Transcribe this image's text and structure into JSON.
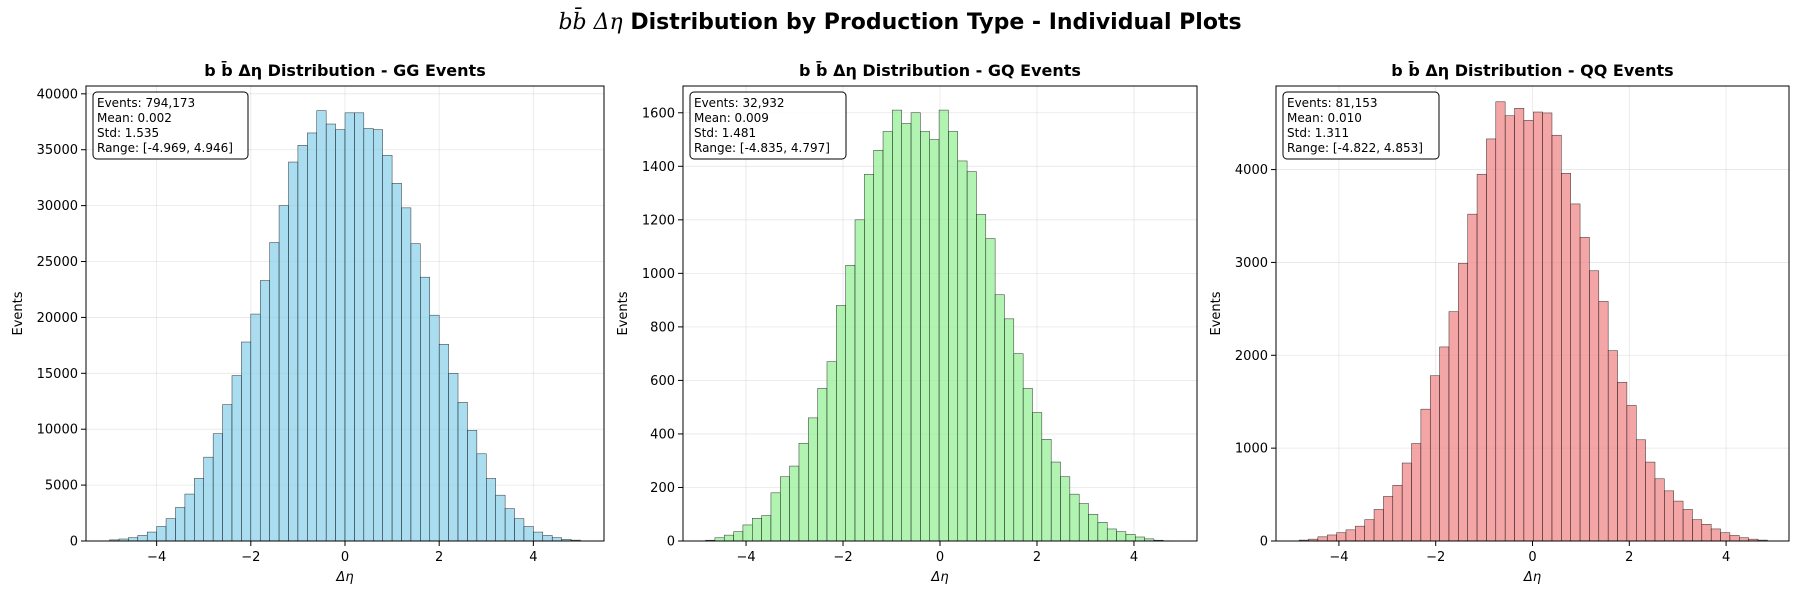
{
  "figure": {
    "title": "b b̄ Δη Distribution by Production Type - Individual Plots"
  },
  "chart_data": [
    {
      "type": "bar",
      "title": "b b̄ Δη Distribution - GG Events",
      "xlabel": "Δη",
      "ylabel": "Events",
      "xlim": [
        -5.5,
        5.5
      ],
      "ylim": [
        0,
        40700
      ],
      "xticks": [
        -4,
        -2,
        0,
        2,
        4
      ],
      "yticks": [
        0,
        5000,
        10000,
        15000,
        20000,
        25000,
        30000,
        35000,
        40000
      ],
      "grid": true,
      "color": "#87CEEB",
      "bin_start": -5.0,
      "bin_width": 0.2,
      "values": [
        100,
        180,
        300,
        500,
        800,
        1300,
        2000,
        3000,
        4200,
        5600,
        7500,
        9600,
        12200,
        14800,
        17800,
        20300,
        23300,
        26700,
        30000,
        33900,
        35400,
        36500,
        38500,
        37300,
        36800,
        38300,
        38300,
        36900,
        36800,
        34500,
        32000,
        29800,
        26600,
        23600,
        20200,
        17600,
        15000,
        12400,
        9900,
        7800,
        5600,
        4100,
        2900,
        2000,
        1300,
        800,
        500,
        300,
        150,
        80
      ],
      "stats": {
        "events": "Events: 794,173",
        "mean": "Mean: 0.002",
        "std": "Std: 1.535",
        "range": "Range: [-4.969, 4.946]"
      }
    },
    {
      "type": "bar",
      "title": "b b̄ Δη Distribution - GQ Events",
      "xlabel": "Δη",
      "ylabel": "Events",
      "xlim": [
        -5.3,
        5.3
      ],
      "ylim": [
        0,
        1700
      ],
      "xticks": [
        -4,
        -2,
        0,
        2,
        4
      ],
      "yticks": [
        0,
        200,
        400,
        600,
        800,
        1000,
        1200,
        1400,
        1600
      ],
      "grid": true,
      "color": "#90EE90",
      "bin_start": -4.835,
      "bin_width": 0.19264,
      "values": [
        3,
        12,
        22,
        35,
        60,
        85,
        95,
        180,
        240,
        280,
        365,
        460,
        570,
        670,
        880,
        1030,
        1200,
        1370,
        1460,
        1530,
        1610,
        1560,
        1600,
        1530,
        1500,
        1610,
        1530,
        1420,
        1380,
        1220,
        1130,
        920,
        830,
        700,
        570,
        480,
        380,
        295,
        240,
        175,
        140,
        100,
        70,
        45,
        35,
        25,
        15,
        8,
        3,
        1
      ],
      "stats": {
        "events": "Events: 32,932",
        "mean": "Mean: 0.009",
        "std": "Std: 1.481",
        "range": "Range: [-4.835, 4.797]"
      }
    },
    {
      "type": "bar",
      "title": "b b̄ Δη Distribution - QQ Events",
      "xlabel": "Δη",
      "ylabel": "Events",
      "xlim": [
        -5.3,
        5.3
      ],
      "ylim": [
        0,
        4900
      ],
      "xticks": [
        -4,
        -2,
        0,
        2,
        4
      ],
      "yticks": [
        0,
        1000,
        2000,
        3000,
        4000
      ],
      "grid": true,
      "color": "#F08080",
      "bin_start": -4.822,
      "bin_width": 0.1935,
      "values": [
        10,
        20,
        45,
        65,
        90,
        120,
        160,
        230,
        340,
        480,
        600,
        840,
        1050,
        1420,
        1780,
        2090,
        2470,
        2990,
        3520,
        3950,
        4330,
        4730,
        4580,
        4660,
        4530,
        4620,
        4610,
        4370,
        3960,
        3630,
        3270,
        2910,
        2580,
        2050,
        1710,
        1460,
        1090,
        850,
        670,
        540,
        430,
        340,
        230,
        180,
        130,
        90,
        60,
        35,
        20,
        10
      ],
      "stats": {
        "events": "Events: 81,153",
        "mean": "Mean: 0.010",
        "std": "Std: 1.311",
        "range": "Range: [-4.822, 4.853]"
      }
    }
  ]
}
